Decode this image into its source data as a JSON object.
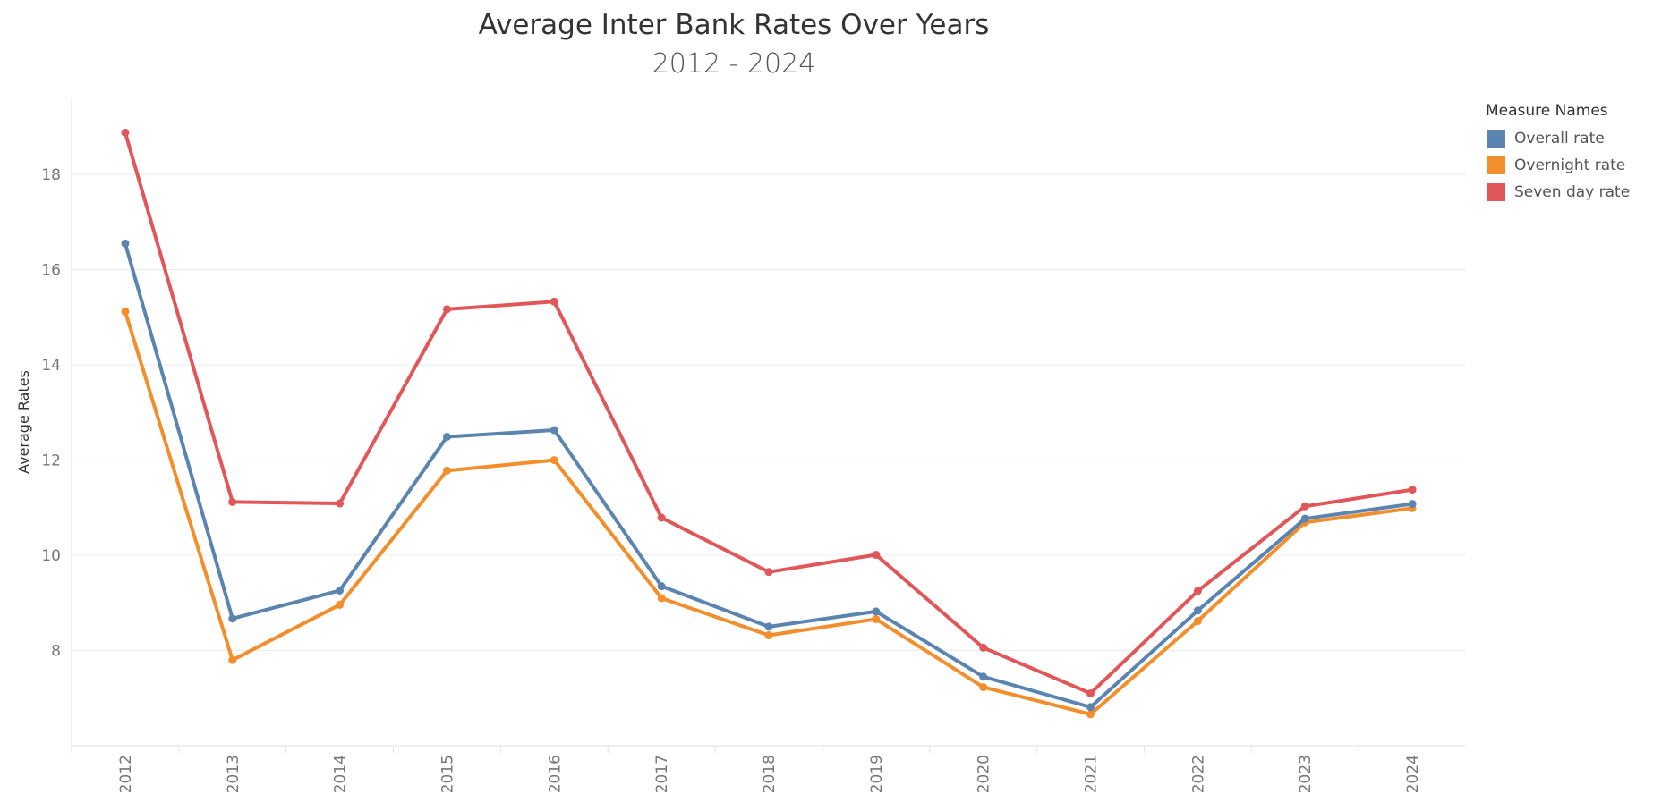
{
  "chart_data": {
    "type": "line",
    "title": "Average Inter Bank  Rates Over Years",
    "subtitle": "2012 - 2024",
    "xlabel": "",
    "ylabel": "Average Rates",
    "x": [
      "2012",
      "2013",
      "2014",
      "2015",
      "2016",
      "2017",
      "2018",
      "2019",
      "2020",
      "2021",
      "2022",
      "2023",
      "2024"
    ],
    "yticks": [
      8,
      10,
      12,
      14,
      16,
      18
    ],
    "ylim": [
      6.0,
      19.6
    ],
    "grid": true,
    "legend": {
      "title": "Measure Names",
      "position": "top-right"
    },
    "series": [
      {
        "name": "Overall rate",
        "color": "#5b84b1",
        "values": [
          16.55,
          8.67,
          9.26,
          12.49,
          12.63,
          9.35,
          8.5,
          8.82,
          7.45,
          6.81,
          8.84,
          10.77,
          11.08
        ]
      },
      {
        "name": "Overnight rate",
        "color": "#f28e2b",
        "values": [
          15.12,
          7.8,
          8.96,
          11.78,
          12.0,
          9.1,
          8.32,
          8.66,
          7.23,
          6.66,
          8.62,
          10.69,
          10.99
        ]
      },
      {
        "name": "Seven day rate",
        "color": "#e15759",
        "values": [
          18.88,
          11.12,
          11.09,
          15.17,
          15.33,
          10.79,
          9.65,
          10.01,
          8.06,
          7.1,
          9.25,
          11.03,
          11.38
        ]
      }
    ]
  }
}
